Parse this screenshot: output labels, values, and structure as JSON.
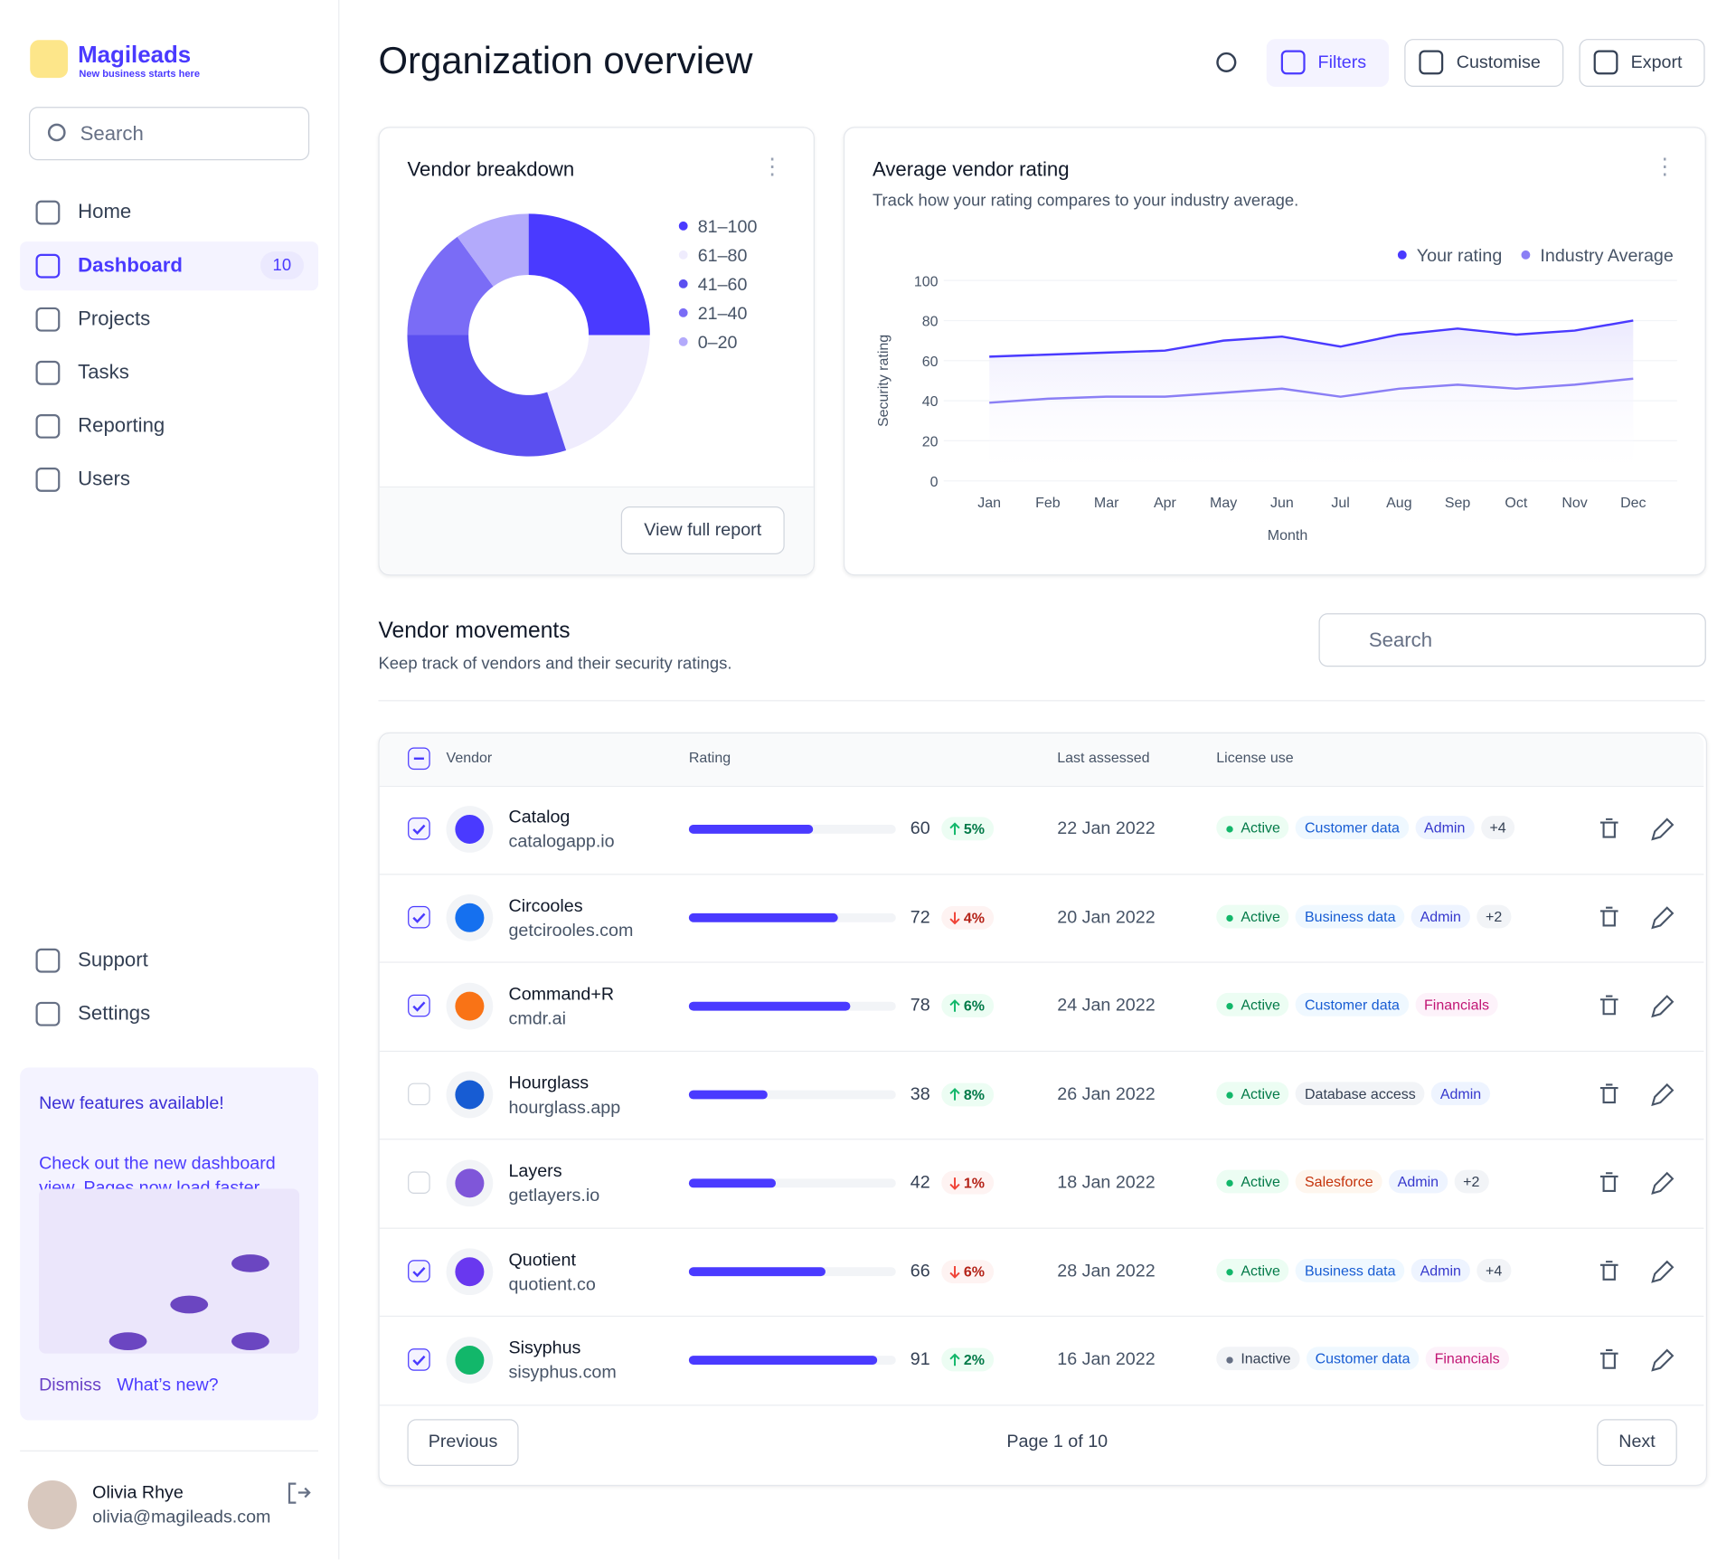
{
  "sidebar": {
    "brand": "Magileads",
    "tagline": "New business starts here",
    "search_placeholder": "Search",
    "nav": [
      {
        "label": "Home"
      },
      {
        "label": "Dashboard",
        "badge": "10"
      },
      {
        "label": "Projects"
      },
      {
        "label": "Tasks"
      },
      {
        "label": "Reporting"
      },
      {
        "label": "Users"
      }
    ],
    "footer_nav": [
      "Support",
      "Settings"
    ],
    "promo": {
      "title": "New features available!",
      "body": "Check out the new dashboard view. Pages now load faster.",
      "dismiss": "Dismiss",
      "whats_new": "What’s new?"
    },
    "user": {
      "name": "Olivia Rhye",
      "email": "olivia@magileads.com"
    }
  },
  "header": {
    "title": "Organization overview",
    "actions": [
      "Filters",
      "Customise",
      "Export"
    ]
  },
  "breakdown_card": {
    "button": "View full report"
  },
  "chart_data": [
    {
      "type": "pie",
      "title": "Vendor breakdown",
      "categories": [
        "81–100",
        "61–80",
        "41–60",
        "21–40",
        "0–20"
      ],
      "values": [
        25,
        20,
        30,
        15,
        10
      ],
      "colors": [
        "#4a3aff",
        "#efecfd",
        "#5b4ff0",
        "#7a6cf6",
        "#b3aafb"
      ],
      "legend": "right"
    },
    {
      "type": "line",
      "title": "Average vendor rating",
      "subtitle": "Track how your rating compares to your industry average.",
      "xlabel": "Month",
      "ylabel": "Security rating",
      "categories": [
        "Jan",
        "Feb",
        "Mar",
        "Apr",
        "May",
        "Jun",
        "Jul",
        "Aug",
        "Sep",
        "Oct",
        "Nov",
        "Dec"
      ],
      "series": [
        {
          "name": "Your rating",
          "color": "#4a3aff",
          "values": [
            62,
            63,
            64,
            65,
            70,
            72,
            67,
            73,
            76,
            73,
            75,
            80
          ]
        },
        {
          "name": "Industry Average",
          "color": "#8b7ff5",
          "values": [
            39,
            41,
            42,
            42,
            44,
            46,
            42,
            46,
            48,
            46,
            48,
            51
          ]
        }
      ],
      "ylim": [
        0,
        100
      ],
      "yticks": [
        0,
        20,
        40,
        60,
        80,
        100
      ],
      "legend": "top-right",
      "grid": true
    }
  ],
  "table": {
    "title": "Vendor movements",
    "subtitle": "Keep track of vendors and their security ratings.",
    "search_placeholder": "Search",
    "columns": [
      "Vendor",
      "Rating",
      "Last assessed",
      "License use"
    ],
    "rows": [
      {
        "name": "Catalog",
        "domain": "catalogapp.io",
        "checked": true,
        "logo_color": "#4a3aff",
        "rating": 60,
        "change": "5%",
        "trend": "up",
        "date": "22 Jan 2022",
        "tags": [
          {
            "label": "Active",
            "style": "active"
          },
          {
            "label": "Customer data",
            "style": "blue"
          },
          {
            "label": "Admin",
            "style": "indigo"
          },
          {
            "label": "+4",
            "style": "gray"
          }
        ]
      },
      {
        "name": "Circooles",
        "domain": "getcirooles.com",
        "checked": true,
        "logo_color": "#1570ef",
        "rating": 72,
        "change": "4%",
        "trend": "down",
        "date": "20 Jan 2022",
        "tags": [
          {
            "label": "Active",
            "style": "active"
          },
          {
            "label": "Business data",
            "style": "blue"
          },
          {
            "label": "Admin",
            "style": "indigo"
          },
          {
            "label": "+2",
            "style": "gray"
          }
        ]
      },
      {
        "name": "Command+R",
        "domain": "cmdr.ai",
        "checked": true,
        "logo_color": "#f97316",
        "rating": 78,
        "change": "6%",
        "trend": "up",
        "date": "24 Jan 2022",
        "tags": [
          {
            "label": "Active",
            "style": "active"
          },
          {
            "label": "Customer data",
            "style": "blue"
          },
          {
            "label": "Financials",
            "style": "pink"
          }
        ]
      },
      {
        "name": "Hourglass",
        "domain": "hourglass.app",
        "checked": false,
        "logo_color": "#175cd3",
        "rating": 38,
        "change": "8%",
        "trend": "up",
        "date": "26 Jan 2022",
        "tags": [
          {
            "label": "Active",
            "style": "active"
          },
          {
            "label": "Database access",
            "style": "gray"
          },
          {
            "label": "Admin",
            "style": "indigo"
          }
        ]
      },
      {
        "name": "Layers",
        "domain": "getlayers.io",
        "checked": false,
        "logo_color": "#7f56d9",
        "rating": 42,
        "change": "1%",
        "trend": "down",
        "date": "18 Jan 2022",
        "tags": [
          {
            "label": "Active",
            "style": "active"
          },
          {
            "label": "Salesforce",
            "style": "orange"
          },
          {
            "label": "Admin",
            "style": "indigo"
          },
          {
            "label": "+2",
            "style": "gray"
          }
        ]
      },
      {
        "name": "Quotient",
        "domain": "quotient.co",
        "checked": true,
        "logo_color": "#6938ef",
        "rating": 66,
        "change": "6%",
        "trend": "down",
        "date": "28 Jan 2022",
        "tags": [
          {
            "label": "Active",
            "style": "active"
          },
          {
            "label": "Business data",
            "style": "blue"
          },
          {
            "label": "Admin",
            "style": "indigo"
          },
          {
            "label": "+4",
            "style": "gray"
          }
        ]
      },
      {
        "name": "Sisyphus",
        "domain": "sisyphus.com",
        "checked": true,
        "logo_color": "#12b76a",
        "rating": 91,
        "change": "2%",
        "trend": "up",
        "date": "16 Jan 2022",
        "tags": [
          {
            "label": "Inactive",
            "style": "inactive"
          },
          {
            "label": "Customer data",
            "style": "blue"
          },
          {
            "label": "Financials",
            "style": "pink"
          }
        ]
      }
    ],
    "pagination": {
      "previous": "Previous",
      "page": "Page 1 of 10",
      "next": "Next"
    }
  }
}
